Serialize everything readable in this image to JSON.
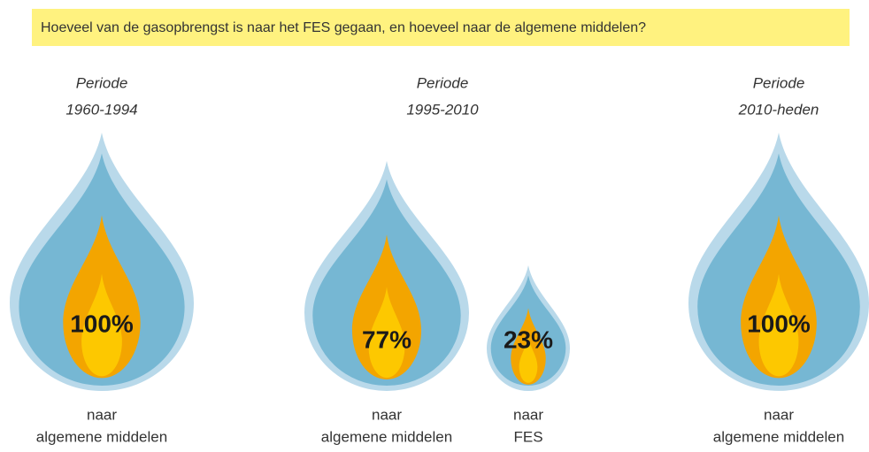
{
  "header": {
    "question": "Hoeveel van de gasopbrengst is naar het FES gegaan, en hoeveel naar de algemene middelen?"
  },
  "columns": [
    {
      "period": [
        "Periode",
        "1960-1994"
      ],
      "drops": [
        {
          "value": "100%",
          "caption": [
            "naar",
            "algemene middelen"
          ]
        }
      ]
    },
    {
      "period": [
        "Periode",
        "1995-2010"
      ],
      "drops": [
        {
          "value": "77%",
          "caption": [
            "naar",
            "algemene middelen"
          ]
        },
        {
          "value": "23%",
          "caption": [
            "naar",
            "FES"
          ]
        }
      ]
    },
    {
      "period": [
        "Periode",
        "2010-heden"
      ],
      "drops": [
        {
          "value": "100%",
          "caption": [
            "naar",
            "algemene middelen"
          ]
        }
      ]
    }
  ]
}
